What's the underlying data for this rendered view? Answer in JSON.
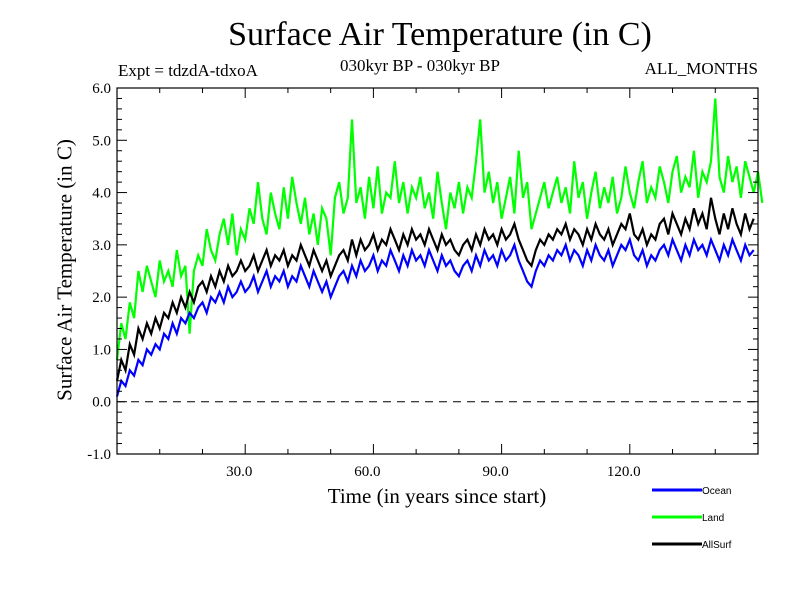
{
  "chart_data": {
    "type": "line",
    "title": "Surface Air Temperature (in C)",
    "subtitle_left": "Expt = tdzdA-tdxoA",
    "subtitle_center": "030kyr BP - 030kyr BP",
    "subtitle_right": "ALL_MONTHS",
    "xlabel": "Time (in years since start)",
    "ylabel": "Surface Air Temperature (in C)",
    "xlim": [
      0,
      150
    ],
    "ylim": [
      -1.0,
      6.0
    ],
    "x_ticks": [
      30,
      60,
      90,
      120
    ],
    "x_tick_labels": [
      "30.0",
      "60.0",
      "90.0",
      "120.0"
    ],
    "y_ticks": [
      -1,
      0,
      1,
      2,
      3,
      4,
      5,
      6
    ],
    "y_tick_labels": [
      "-1.0",
      "0.0",
      "1.0",
      "2.0",
      "3.0",
      "4.0",
      "5.0",
      "6.0"
    ],
    "reference_line": {
      "y": 0.0,
      "style": "dashed"
    },
    "grid": false,
    "legend_position": "bottom-right",
    "x_start": 0,
    "x_step": 1,
    "series": [
      {
        "name": "Ocean",
        "color": "#0000ff",
        "values": [
          0.1,
          0.4,
          0.3,
          0.6,
          0.5,
          0.8,
          0.7,
          1.0,
          0.9,
          1.1,
          1.0,
          1.3,
          1.2,
          1.5,
          1.3,
          1.6,
          1.5,
          1.7,
          1.6,
          1.8,
          1.9,
          1.7,
          2.0,
          1.9,
          2.1,
          1.9,
          2.2,
          2.0,
          2.1,
          2.3,
          2.1,
          2.2,
          2.4,
          2.1,
          2.3,
          2.5,
          2.2,
          2.4,
          2.3,
          2.5,
          2.2,
          2.4,
          2.3,
          2.6,
          2.4,
          2.2,
          2.5,
          2.3,
          2.1,
          2.3,
          2.0,
          2.2,
          2.4,
          2.5,
          2.3,
          2.6,
          2.4,
          2.7,
          2.5,
          2.6,
          2.8,
          2.5,
          2.7,
          2.6,
          2.9,
          2.7,
          2.5,
          2.8,
          2.6,
          2.9,
          2.7,
          2.8,
          2.6,
          2.9,
          2.7,
          2.5,
          2.8,
          2.6,
          2.7,
          2.5,
          2.4,
          2.6,
          2.7,
          2.5,
          2.8,
          2.6,
          2.9,
          2.7,
          2.8,
          2.6,
          2.9,
          2.7,
          2.8,
          3.0,
          2.7,
          2.5,
          2.3,
          2.2,
          2.5,
          2.7,
          2.6,
          2.8,
          2.7,
          2.9,
          2.8,
          3.0,
          2.7,
          2.9,
          2.8,
          2.6,
          2.9,
          2.7,
          3.0,
          2.8,
          2.7,
          2.9,
          2.6,
          2.8,
          3.0,
          2.9,
          3.1,
          2.8,
          2.7,
          2.9,
          2.6,
          2.8,
          2.7,
          2.9,
          3.0,
          2.8,
          3.1,
          2.9,
          2.7,
          3.0,
          2.8,
          3.1,
          2.9,
          3.0,
          2.8,
          3.1,
          2.9,
          2.7,
          3.0,
          2.8,
          3.1,
          2.9,
          2.7,
          3.0,
          2.8,
          2.9
        ]
      },
      {
        "name": "Land",
        "color": "#00ff00",
        "values": [
          0.8,
          1.5,
          1.2,
          1.9,
          1.6,
          2.5,
          2.1,
          2.6,
          2.3,
          2.0,
          2.7,
          2.3,
          2.5,
          2.2,
          2.9,
          2.4,
          2.6,
          1.3,
          2.5,
          2.8,
          2.6,
          3.3,
          2.9,
          2.7,
          3.2,
          3.5,
          3.0,
          3.6,
          2.8,
          3.3,
          3.1,
          3.7,
          3.4,
          4.2,
          3.5,
          3.2,
          4.0,
          3.6,
          3.3,
          4.1,
          3.5,
          4.3,
          3.8,
          3.4,
          3.9,
          3.2,
          3.6,
          3.0,
          3.7,
          3.5,
          2.8,
          3.9,
          4.2,
          3.6,
          3.9,
          5.4,
          3.8,
          4.1,
          3.5,
          4.3,
          3.7,
          4.5,
          3.6,
          4.0,
          3.9,
          4.6,
          3.8,
          4.2,
          3.6,
          4.1,
          3.9,
          4.3,
          3.7,
          4.0,
          3.5,
          4.4,
          3.8,
          3.3,
          4.0,
          3.7,
          4.2,
          3.6,
          4.1,
          3.9,
          4.6,
          5.4,
          4.0,
          4.4,
          3.8,
          4.2,
          3.5,
          3.9,
          4.3,
          3.6,
          4.8,
          3.9,
          4.2,
          3.3,
          3.6,
          3.9,
          4.2,
          3.7,
          4.0,
          4.3,
          3.8,
          4.1,
          3.6,
          4.6,
          3.9,
          4.2,
          3.5,
          4.0,
          4.4,
          3.7,
          4.1,
          3.8,
          4.3,
          3.6,
          3.9,
          4.5,
          4.0,
          3.7,
          4.2,
          4.6,
          3.8,
          4.1,
          3.9,
          4.5,
          4.2,
          3.8,
          4.4,
          4.7,
          4.0,
          4.3,
          4.1,
          4.8,
          3.9,
          4.4,
          4.2,
          4.6,
          5.8,
          4.3,
          4.0,
          4.7,
          4.2,
          4.5,
          3.9,
          4.6,
          4.3,
          4.0,
          4.4,
          3.8
        ]
      },
      {
        "name": "AllSurf",
        "color": "#000000",
        "values": [
          0.4,
          0.8,
          0.6,
          1.1,
          0.9,
          1.4,
          1.2,
          1.5,
          1.3,
          1.6,
          1.4,
          1.7,
          1.6,
          1.9,
          1.7,
          2.0,
          1.8,
          2.1,
          1.9,
          2.2,
          2.3,
          2.1,
          2.4,
          2.2,
          2.5,
          2.3,
          2.6,
          2.4,
          2.5,
          2.7,
          2.5,
          2.6,
          2.8,
          2.5,
          2.7,
          2.9,
          2.6,
          2.8,
          2.7,
          2.9,
          2.6,
          2.8,
          2.7,
          3.0,
          2.8,
          2.6,
          2.9,
          2.7,
          2.5,
          2.7,
          2.4,
          2.6,
          2.8,
          2.9,
          2.7,
          3.1,
          2.8,
          3.1,
          2.9,
          3.0,
          3.2,
          2.9,
          3.1,
          3.0,
          3.3,
          3.1,
          2.9,
          3.2,
          3.0,
          3.3,
          3.1,
          3.2,
          3.0,
          3.3,
          3.1,
          2.9,
          3.2,
          3.0,
          3.1,
          2.9,
          2.8,
          3.0,
          3.1,
          2.9,
          3.2,
          3.0,
          3.3,
          3.1,
          3.2,
          3.0,
          3.3,
          3.1,
          3.2,
          3.4,
          3.1,
          2.9,
          2.7,
          2.6,
          2.9,
          3.1,
          3.0,
          3.2,
          3.1,
          3.3,
          3.2,
          3.4,
          3.1,
          3.3,
          3.2,
          3.0,
          3.3,
          3.1,
          3.4,
          3.2,
          3.1,
          3.3,
          3.0,
          3.2,
          3.4,
          3.3,
          3.6,
          3.2,
          3.1,
          3.3,
          3.0,
          3.2,
          3.1,
          3.4,
          3.5,
          3.2,
          3.6,
          3.4,
          3.2,
          3.5,
          3.3,
          3.7,
          3.4,
          3.6,
          3.3,
          3.9,
          3.5,
          3.2,
          3.6,
          3.3,
          3.7,
          3.4,
          3.2,
          3.6,
          3.3,
          3.5
        ]
      }
    ]
  }
}
